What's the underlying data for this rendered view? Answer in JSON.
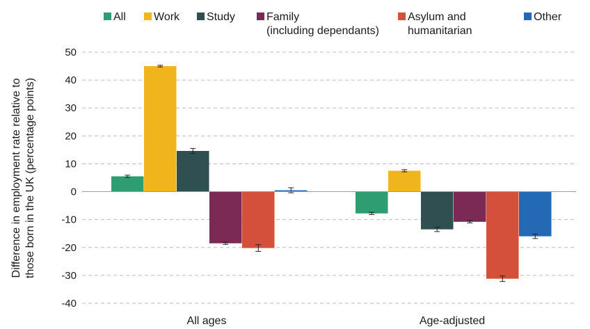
{
  "chart_data": {
    "type": "bar",
    "title": "",
    "xlabel": "",
    "ylabel_lines": [
      "Difference in employment rate relative to",
      "those born in the UK (percentage points)"
    ],
    "ylim": [
      -40,
      50
    ],
    "yticks": [
      50,
      40,
      30,
      20,
      10,
      0,
      -10,
      -20,
      -30,
      -40
    ],
    "grid": true,
    "legend_position": "top",
    "categories": [
      "All ages",
      "Age-adjusted"
    ],
    "series": [
      {
        "name": "All",
        "legend_lines": [
          "All"
        ],
        "color": "#2e9e72",
        "values": [
          5.5,
          -7.8
        ],
        "error": [
          0.4,
          0.4
        ]
      },
      {
        "name": "Work",
        "legend_lines": [
          "Work"
        ],
        "color": "#f0b41c",
        "values": [
          45.0,
          7.5
        ],
        "error": [
          0.3,
          0.4
        ]
      },
      {
        "name": "Study",
        "legend_lines": [
          "Study"
        ],
        "color": "#2f4f51",
        "values": [
          14.6,
          -13.5
        ],
        "error": [
          0.9,
          0.8
        ]
      },
      {
        "name": "Family (including dependants)",
        "legend_lines": [
          "Family",
          "(including dependants)"
        ],
        "color": "#7a2a55",
        "values": [
          -18.5,
          -10.8
        ],
        "error": [
          0.4,
          0.4
        ]
      },
      {
        "name": "Asylum and humanitarian",
        "legend_lines": [
          "Asylum and",
          "humanitarian"
        ],
        "color": "#d4503a",
        "values": [
          -20.2,
          -31.2
        ],
        "error": [
          1.2,
          1.0
        ]
      },
      {
        "name": "Other",
        "legend_lines": [
          "Other"
        ],
        "color": "#2469b3",
        "values": [
          0.5,
          -16.0
        ],
        "error": [
          0.9,
          0.8
        ]
      }
    ]
  }
}
